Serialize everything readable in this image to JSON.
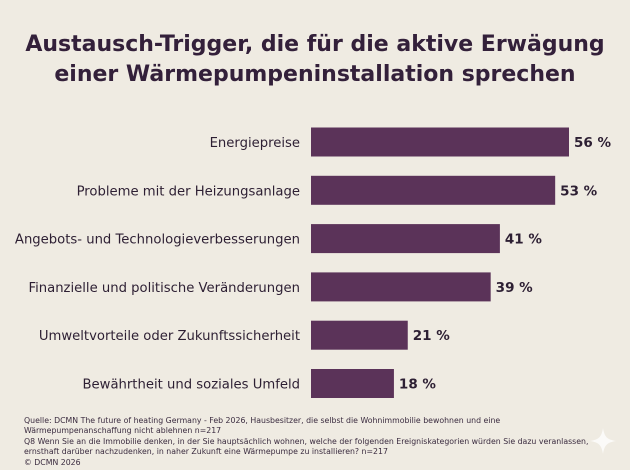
{
  "title": {
    "line1": "Austausch-Trigger, die für die aktive Erwägung",
    "line2": "einer Wärmepumpeninstallation sprechen"
  },
  "colors": {
    "background": "#efebe2",
    "bar": "#5b3359",
    "text": "#2d1f33"
  },
  "chart_data": {
    "type": "bar",
    "orientation": "horizontal",
    "categories": [
      "Energiepreise",
      "Probleme mit der Heizungsanlage",
      "Angebots- und Technologieverbesserungen",
      "Finanzielle und politische Veränderungen",
      "Umweltvorteile oder Zukunftssicherheit",
      "Bewährtheit und soziales Umfeld"
    ],
    "values": [
      56,
      53,
      41,
      39,
      21,
      18
    ],
    "value_labels": [
      "56 %",
      "53 %",
      "41 %",
      "39 %",
      "21 %",
      "18 %"
    ],
    "unit": "%",
    "xlim": [
      0,
      56
    ],
    "grid": false,
    "legend": "none"
  },
  "footer": {
    "source": "Quelle: DCMN The future of heating Germany - Feb 2026, Hausbesitzer, die selbst die Wohnimmobilie bewohnen und eine Wärmepumpenanschaffung nicht ablehnen n=217",
    "question": "Q8 Wenn Sie an die Immobilie denken, in der Sie hauptsächlich wohnen, welche der folgenden Ereigniskategorien würden Sie dazu veranlassen, ernsthaft darüber nachzudenken, in naher Zukunft eine Wärmepumpe zu installieren? n=217",
    "copyright": "© DCMN 2026"
  },
  "icons": {
    "corner": "sparkle-icon"
  }
}
